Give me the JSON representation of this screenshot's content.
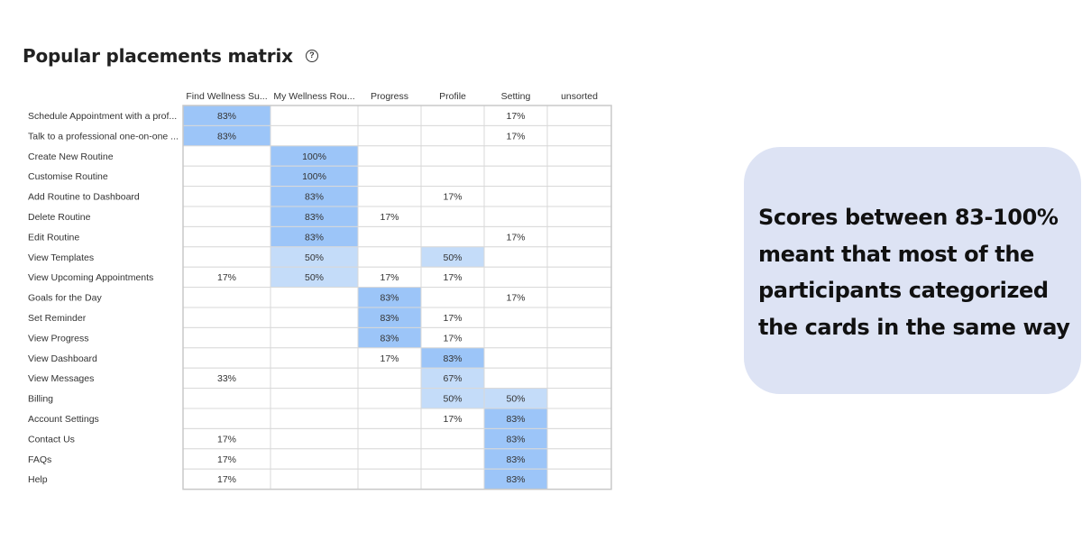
{
  "header": {
    "title": "Popular placements matrix",
    "help_icon": "question-circle-icon",
    "help_glyph": "?"
  },
  "chart_data": {
    "type": "heatmap",
    "title": "Popular placements matrix",
    "columns": [
      "Find Wellness Su...",
      "My Wellness Rou...",
      "Progress",
      "Profile",
      "Setting",
      "unsorted"
    ],
    "rows": [
      "Schedule Appointment with a prof...",
      "Talk to a professional one-on-one ...",
      "Create New Routine",
      "Customise Routine",
      "Add Routine to Dashboard",
      "Delete Routine",
      "Edit Routine",
      "View Templates",
      "View Upcoming Appointments",
      "Goals for the Day",
      "Set Reminder",
      "View Progress",
      "View Dashboard",
      "View Messages",
      "Billing",
      "Account Settings",
      "Contact Us",
      "FAQs",
      "Help"
    ],
    "values": [
      [
        83,
        null,
        null,
        null,
        17,
        null
      ],
      [
        83,
        null,
        null,
        null,
        17,
        null
      ],
      [
        null,
        100,
        null,
        null,
        null,
        null
      ],
      [
        null,
        100,
        null,
        null,
        null,
        null
      ],
      [
        null,
        83,
        null,
        17,
        null,
        null
      ],
      [
        null,
        83,
        17,
        null,
        null,
        null
      ],
      [
        null,
        83,
        null,
        null,
        17,
        null
      ],
      [
        null,
        50,
        null,
        50,
        null,
        null
      ],
      [
        17,
        50,
        17,
        17,
        null,
        null
      ],
      [
        null,
        null,
        83,
        null,
        17,
        null
      ],
      [
        null,
        null,
        83,
        17,
        null,
        null
      ],
      [
        null,
        null,
        83,
        17,
        null,
        null
      ],
      [
        null,
        null,
        17,
        83,
        null,
        null
      ],
      [
        33,
        null,
        null,
        67,
        null,
        null
      ],
      [
        null,
        null,
        null,
        50,
        50,
        null
      ],
      [
        null,
        null,
        null,
        17,
        83,
        null
      ],
      [
        17,
        null,
        null,
        null,
        83,
        null
      ],
      [
        17,
        null,
        null,
        null,
        83,
        null
      ],
      [
        17,
        null,
        null,
        null,
        83,
        null
      ]
    ],
    "unit": "%",
    "colors": {
      "high": "#9cc5f8",
      "medium": "#c4dcf9",
      "grid": "#d9d9d9",
      "text": "#333333"
    }
  },
  "callout": {
    "lines": [
      "Scores between 83-100%",
      "meant that most of the",
      "participants categorized",
      "the cards in the same way"
    ]
  }
}
